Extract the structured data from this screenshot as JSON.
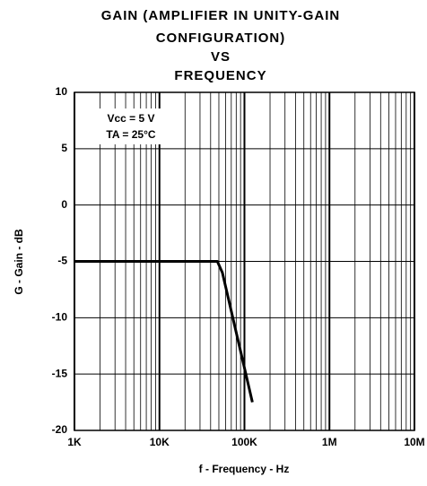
{
  "chart_data": {
    "type": "line",
    "title": [
      "GAIN (AMPLIFIER IN UNITY-GAIN",
      "CONFIGURATION)",
      "VS",
      "FREQUENCY"
    ],
    "xlabel": "f - Frequency - Hz",
    "ylabel": "G - Gain - dB",
    "annotation": [
      "Vcc = 5 V",
      "TA = 25°C"
    ],
    "xscale": "log",
    "grid": true,
    "xlim": [
      1000,
      10000000
    ],
    "ylim": [
      -20,
      10
    ],
    "xticks": [
      {
        "value": 1000,
        "label": "1K"
      },
      {
        "value": 10000,
        "label": "10K"
      },
      {
        "value": 100000,
        "label": "100K"
      },
      {
        "value": 1000000,
        "label": "1M"
      },
      {
        "value": 10000000,
        "label": "10M"
      }
    ],
    "yticks": [
      -20,
      -15,
      -10,
      -5,
      0,
      5,
      10
    ],
    "series": [
      {
        "color": "#000000",
        "x": [
          1000,
          48000,
          55000,
          124000
        ],
        "values": [
          -5,
          -5,
          -6,
          -17.5
        ]
      }
    ]
  }
}
